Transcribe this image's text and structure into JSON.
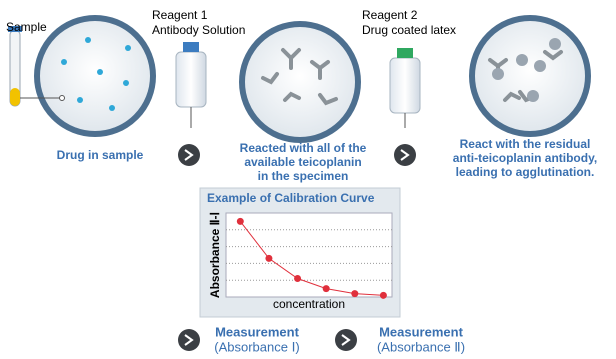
{
  "labels": {
    "sample": "Sample",
    "reagent1": [
      "Reagent 1",
      "Antibody Solution"
    ],
    "reagent2": [
      "Reagent 2",
      "Drug coated latex"
    ]
  },
  "captions": {
    "step1": "Drug in sample",
    "step2": [
      "Reacted with all of the",
      "available teicoplanin",
      "in the specimen"
    ],
    "step3": [
      "React with the residual",
      "anti-teicoplanin antibody,",
      "leading to agglutination."
    ]
  },
  "measurements": [
    {
      "title": "Measurement",
      "sub": "(Absorbance Ⅰ)"
    },
    {
      "title": "Measurement",
      "sub": "(Absorbance Ⅱ)"
    }
  ],
  "chart_data": {
    "type": "line",
    "title": "Example of Calibration Curve",
    "x_label": "concentration",
    "y_label": "Absorbance Ⅱ-Ⅰ",
    "x": [
      1,
      2,
      3,
      4,
      5,
      6
    ],
    "series": [
      {
        "color": "#e0303c",
        "values": [
          4.5,
          2.3,
          1.1,
          0.5,
          0.2,
          0.1
        ]
      }
    ],
    "xlim": [
      0.5,
      6.3
    ],
    "ylim": [
      0,
      5
    ],
    "yticks": [
      1,
      2,
      3,
      4
    ],
    "grid": true
  }
}
